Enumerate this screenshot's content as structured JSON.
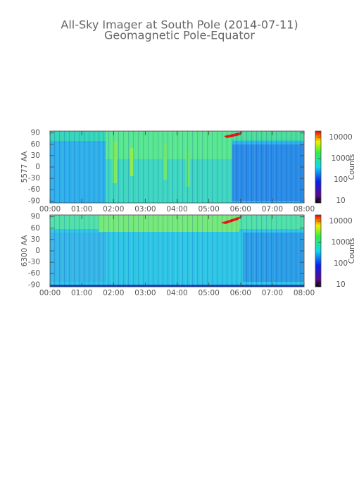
{
  "chart_data": [
    {
      "type": "heatmap",
      "title": "All-Sky Imager at South Pole (2014-07-11)",
      "subtitle": "Geomagnetic Pole-Equator",
      "ylabel": "5577 AA",
      "xlim": [
        0,
        8
      ],
      "xticks": [
        {
          "value": 0,
          "label": "00:00"
        },
        {
          "value": 1,
          "label": "01:00"
        },
        {
          "value": 2,
          "label": "02:00"
        },
        {
          "value": 3,
          "label": "03:00"
        },
        {
          "value": 4,
          "label": "04:00"
        },
        {
          "value": 5,
          "label": "05:00"
        },
        {
          "value": 6,
          "label": "06:00"
        },
        {
          "value": 7,
          "label": "07:00"
        },
        {
          "value": 8,
          "label": "08:00"
        }
      ],
      "ylim": [
        -95,
        95
      ],
      "yticks": [
        90,
        60,
        30,
        0,
        -30,
        -60,
        -90
      ],
      "colorbar": {
        "label": "Counts",
        "log": true,
        "lim": [
          8,
          20000
        ],
        "ticks": [
          10,
          100,
          1000,
          10000
        ]
      }
    },
    {
      "type": "heatmap",
      "ylabel": "6300 AA",
      "xlim": [
        0,
        8
      ],
      "xticks": [
        {
          "value": 0,
          "label": "00:00"
        },
        {
          "value": 1,
          "label": "01:00"
        },
        {
          "value": 2,
          "label": "02:00"
        },
        {
          "value": 3,
          "label": "03:00"
        },
        {
          "value": 4,
          "label": "04:00"
        },
        {
          "value": 5,
          "label": "05:00"
        },
        {
          "value": 6,
          "label": "06:00"
        },
        {
          "value": 7,
          "label": "07:00"
        },
        {
          "value": 8,
          "label": "08:00"
        }
      ],
      "ylim": [
        -95,
        95
      ],
      "yticks": [
        90,
        60,
        30,
        0,
        -30,
        -60,
        -90
      ],
      "colorbar": {
        "label": "Counts",
        "log": true,
        "lim": [
          8,
          20000
        ],
        "ticks": [
          10,
          100,
          1000,
          10000
        ]
      }
    }
  ]
}
